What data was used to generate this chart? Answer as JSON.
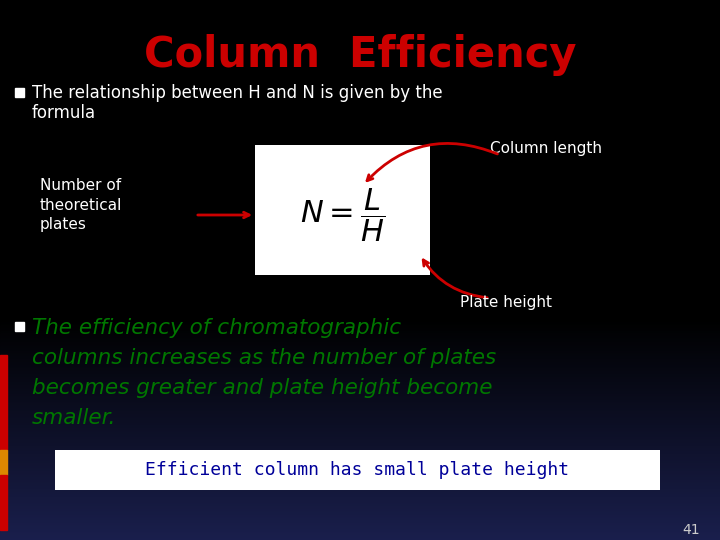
{
  "title": "Column  Efficiency",
  "title_color": "#cc0000",
  "bg_color": "#000000",
  "bullet1_color": "#ffffff",
  "bullet_marker_color": "#ffffff",
  "column_length_label": "Column length",
  "column_length_color": "#ffffff",
  "num_theoretical_label": "Number of\ntheoretical\nplates",
  "num_theoretical_color": "#ffffff",
  "plate_height_label": "Plate height",
  "plate_height_color": "#ffffff",
  "formula_box_color": "#ffffff",
  "bullet2_line1": "The efficiency of chromatographic",
  "bullet2_line2": "columns increases as the number of plates",
  "bullet2_line3": "becomes greater and plate height become",
  "bullet2_line4": "smaller.",
  "bullet2_color": "#007700",
  "efficient_box_text": "Efficient column has small plate height",
  "efficient_box_text_color": "#000099",
  "efficient_box_bg": "#ffffff",
  "slide_number": "41",
  "slide_number_color": "#cccccc",
  "arrow_color": "#cc0000",
  "left_bar1_color": "#cc0000",
  "left_bar2_color": "#dd8800",
  "left_bar3_color": "#cc0000"
}
